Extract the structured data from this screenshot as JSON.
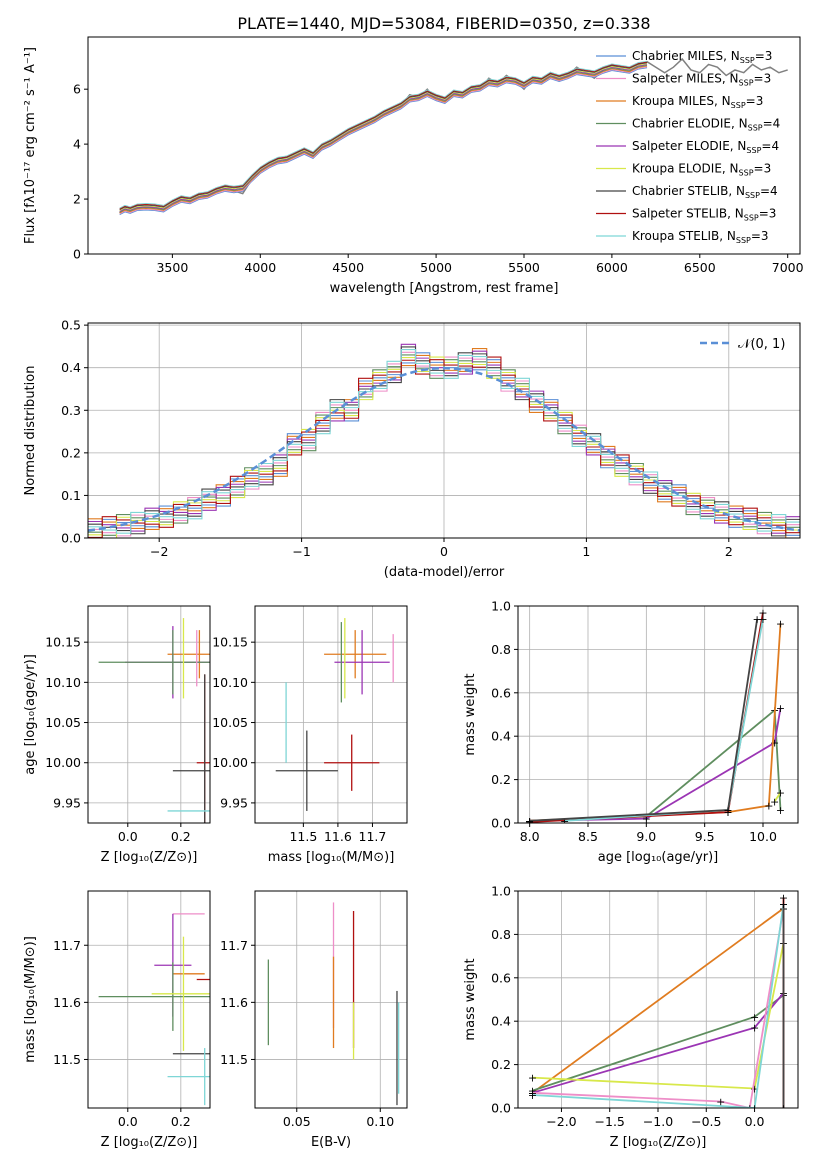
{
  "figure_title": "PLATE=1440, MJD=53084, FIBERID=0350, z=0.338",
  "models": [
    {
      "name": "Chabrier MILES, N",
      "ssp": "3",
      "color": "#5a8fd6"
    },
    {
      "name": "Salpeter MILES, N",
      "ssp": "3",
      "color": "#ee8ec8"
    },
    {
      "name": "Kroupa MILES, N",
      "ssp": "3",
      "color": "#e07c20"
    },
    {
      "name": "Chabrier ELODIE, N",
      "ssp": "4",
      "color": "#5f8e5f"
    },
    {
      "name": "Salpeter ELODIE, N",
      "ssp": "4",
      "color": "#9b35b4"
    },
    {
      "name": "Kroupa ELODIE, N",
      "ssp": "3",
      "color": "#d8e84a"
    },
    {
      "name": "Chabrier STELIB, N",
      "ssp": "4",
      "color": "#444444"
    },
    {
      "name": "Salpeter STELIB, N",
      "ssp": "3",
      "color": "#b01010"
    },
    {
      "name": "Kroupa STELIB, N",
      "ssp": "3",
      "color": "#7ed6d6"
    }
  ],
  "chart_data": [
    {
      "id": "spectrum",
      "type": "line",
      "title": "PLATE=1440, MJD=53084, FIBERID=0350, z=0.338",
      "xlabel": "wavelength [Angstrom, rest frame]",
      "ylabel": "Flux [fλ10⁻¹⁷ erg cm⁻² s⁻¹ A⁻¹]",
      "xlim": [
        3020,
        7070
      ],
      "ylim": [
        0,
        7.9
      ],
      "xticks": [
        3500,
        4000,
        4500,
        5000,
        5500,
        6000,
        6500,
        7000
      ],
      "yticks": [
        0,
        2,
        4,
        6
      ],
      "legend": "top-right",
      "data_color": "#808080",
      "data_x": [
        3200,
        3230,
        3260,
        3300,
        3350,
        3400,
        3450,
        3500,
        3550,
        3600,
        3650,
        3700,
        3750,
        3800,
        3850,
        3900,
        3950,
        4000,
        4050,
        4100,
        4150,
        4200,
        4250,
        4300,
        4350,
        4400,
        4450,
        4500,
        4550,
        4600,
        4650,
        4700,
        4750,
        4800,
        4850,
        4900,
        4950,
        5000,
        5050,
        5100,
        5150,
        5200,
        5250,
        5300,
        5350,
        5400,
        5450,
        5500,
        5550,
        5600,
        5650,
        5700,
        5750,
        5800,
        5850,
        5900,
        5950,
        6000,
        6050,
        6100,
        6150,
        6200,
        6250,
        6300,
        6350,
        6400,
        6450,
        6500,
        6550,
        6600,
        6650,
        6700,
        6750,
        6800,
        6850,
        6900,
        6950,
        7000
      ],
      "data_y": [
        1.5,
        1.7,
        1.6,
        1.8,
        1.7,
        1.75,
        1.6,
        1.9,
        2.1,
        1.9,
        2.2,
        2.1,
        2.3,
        2.5,
        2.3,
        2.2,
        2.7,
        3.1,
        3.3,
        3.5,
        3.4,
        3.7,
        3.8,
        3.5,
        3.9,
        4.0,
        4.3,
        4.5,
        4.6,
        4.8,
        4.9,
        5.2,
        5.3,
        5.4,
        5.8,
        5.7,
        6.0,
        5.6,
        5.5,
        5.9,
        5.7,
        6.1,
        6.0,
        6.4,
        6.2,
        6.5,
        6.3,
        6.0,
        6.4,
        6.2,
        6.6,
        6.3,
        6.5,
        6.8,
        6.6,
        6.4,
        6.7,
        6.9,
        6.7,
        6.6,
        6.9,
        7.0,
        6.8,
        6.6,
        6.8,
        7.1,
        6.7,
        6.6,
        6.9,
        6.8,
        6.5,
        6.7,
        6.6,
        6.9,
        6.7,
        6.8,
        6.6,
        6.7
      ],
      "model_x": [
        3200,
        3230,
        3260,
        3300,
        3350,
        3400,
        3450,
        3500,
        3550,
        3600,
        3650,
        3700,
        3750,
        3800,
        3850,
        3900,
        3950,
        4000,
        4050,
        4100,
        4150,
        4200,
        4250,
        4300,
        4350,
        4400,
        4450,
        4500,
        4550,
        4600,
        4650,
        4700,
        4750,
        4800,
        4850,
        4900,
        4950,
        5000,
        5050,
        5100,
        5150,
        5200,
        5250,
        5300,
        5350,
        5400,
        5450,
        5500,
        5550,
        5600,
        5650,
        5700,
        5750,
        5800,
        5850,
        5900,
        5950,
        6000,
        6050,
        6100,
        6150,
        6200
      ],
      "model_y": [
        1.55,
        1.65,
        1.6,
        1.7,
        1.72,
        1.7,
        1.65,
        1.85,
        2.0,
        1.95,
        2.1,
        2.15,
        2.3,
        2.4,
        2.35,
        2.4,
        2.75,
        3.05,
        3.25,
        3.4,
        3.45,
        3.6,
        3.75,
        3.6,
        3.9,
        4.05,
        4.25,
        4.45,
        4.6,
        4.75,
        4.9,
        5.1,
        5.25,
        5.4,
        5.65,
        5.7,
        5.85,
        5.7,
        5.6,
        5.85,
        5.8,
        6.0,
        6.05,
        6.25,
        6.2,
        6.35,
        6.3,
        6.15,
        6.35,
        6.3,
        6.5,
        6.4,
        6.5,
        6.65,
        6.6,
        6.55,
        6.7,
        6.8,
        6.75,
        6.7,
        6.85,
        6.9
      ]
    },
    {
      "id": "residuals",
      "type": "line",
      "xlabel": "(data-model)/error",
      "ylabel": "Normed distribution",
      "xlim": [
        -2.5,
        2.5
      ],
      "ylim": [
        0,
        0.505
      ],
      "xticks": [
        -2,
        -1,
        0,
        1,
        2
      ],
      "yticks": [
        0.0,
        0.1,
        0.2,
        0.3,
        0.4,
        0.5
      ],
      "legend_label": "𝒩(0, 1)",
      "legend": "top-right",
      "bin_edges": [
        -2.5,
        -2.4,
        -2.3,
        -2.2,
        -2.1,
        -2.0,
        -1.9,
        -1.8,
        -1.7,
        -1.6,
        -1.5,
        -1.4,
        -1.3,
        -1.2,
        -1.1,
        -1.0,
        -0.9,
        -0.8,
        -0.7,
        -0.6,
        -0.5,
        -0.4,
        -0.3,
        -0.2,
        -0.1,
        0.0,
        0.1,
        0.2,
        0.3,
        0.4,
        0.5,
        0.6,
        0.7,
        0.8,
        0.9,
        1.0,
        1.1,
        1.2,
        1.3,
        1.4,
        1.5,
        1.6,
        1.7,
        1.8,
        1.9,
        2.0,
        2.1,
        2.2,
        2.3,
        2.4,
        2.5
      ],
      "hist": [
        0.02,
        0.025,
        0.03,
        0.035,
        0.045,
        0.05,
        0.06,
        0.07,
        0.09,
        0.1,
        0.12,
        0.14,
        0.15,
        0.17,
        0.22,
        0.23,
        0.27,
        0.3,
        0.3,
        0.35,
        0.37,
        0.39,
        0.43,
        0.41,
        0.4,
        0.4,
        0.41,
        0.42,
        0.4,
        0.37,
        0.35,
        0.32,
        0.3,
        0.27,
        0.24,
        0.22,
        0.19,
        0.17,
        0.15,
        0.13,
        0.11,
        0.1,
        0.08,
        0.07,
        0.06,
        0.05,
        0.045,
        0.035,
        0.03,
        0.025
      ]
    },
    {
      "id": "age-vs-Z",
      "type": "scatter",
      "xlabel": "Z [log₁₀(Z/Z⊙)]",
      "ylabel": "age  [log₁₀(age/yr)]",
      "xlim": [
        -0.15,
        0.31
      ],
      "ylim": [
        9.925,
        10.195
      ],
      "xticks": [
        0.0,
        0.2
      ],
      "yticks": [
        9.95,
        10.0,
        10.05,
        10.1,
        10.15
      ],
      "points": [
        {
          "x": 0.27,
          "y": 10.135,
          "xerr": 0.12,
          "yerr": 0.03,
          "color": "#e07c20"
        },
        {
          "x": 0.17,
          "y": 10.125,
          "xerr": 0.18,
          "yerr": 0.045,
          "color": "#9b35b4"
        },
        {
          "x": 0.17,
          "y": 10.125,
          "xerr": 0.28,
          "yerr": 0.04,
          "color": "#5f8e5f"
        },
        {
          "x": 0.21,
          "y": 10.13,
          "xerr": 0.0,
          "yerr": 0.05,
          "color": "#d8e84a"
        },
        {
          "x": 0.26,
          "y": 10.13,
          "xerr": 0.0,
          "yerr": 0.035,
          "color": "#ee8ec8"
        },
        {
          "x": 0.29,
          "y": 10.0,
          "xerr": 0.03,
          "yerr": 0.11,
          "color": "#b01010"
        },
        {
          "x": 0.29,
          "y": 9.99,
          "xerr": 0.12,
          "yerr": 0.12,
          "color": "#444444"
        },
        {
          "x": 0.29,
          "y": 9.94,
          "xerr": 0.14,
          "yerr": 0.0,
          "color": "#7ed6d6"
        }
      ]
    },
    {
      "id": "age-vs-mass",
      "type": "scatter",
      "xlabel": "mass [log₁₀(M/M⊙)]",
      "ylabel": "",
      "xlim": [
        11.36,
        11.8
      ],
      "ylim": [
        9.925,
        10.195
      ],
      "xticks": [
        11.5,
        11.6,
        11.7
      ],
      "yticks": [
        9.95,
        10.0,
        10.05,
        10.1,
        10.15
      ],
      "points": [
        {
          "x": 11.65,
          "y": 10.135,
          "xerr": 0.09,
          "yerr": 0.03,
          "color": "#e07c20"
        },
        {
          "x": 11.67,
          "y": 10.125,
          "xerr": 0.08,
          "yerr": 0.04,
          "color": "#9b35b4"
        },
        {
          "x": 11.61,
          "y": 10.125,
          "xerr": 0.0,
          "yerr": 0.05,
          "color": "#5f8e5f"
        },
        {
          "x": 11.62,
          "y": 10.13,
          "xerr": 0.0,
          "yerr": 0.05,
          "color": "#d8e84a"
        },
        {
          "x": 11.76,
          "y": 10.13,
          "xerr": 0.0,
          "yerr": 0.03,
          "color": "#ee8ec8"
        },
        {
          "x": 11.64,
          "y": 10.0,
          "xerr": 0.08,
          "yerr": 0.035,
          "color": "#b01010"
        },
        {
          "x": 11.51,
          "y": 9.99,
          "xerr": 0.09,
          "yerr": 0.05,
          "color": "#444444"
        },
        {
          "x": 11.45,
          "y": 10.05,
          "xerr": 0.0,
          "yerr": 0.05,
          "color": "#7ed6d6"
        }
      ]
    },
    {
      "id": "weight-vs-age",
      "type": "line",
      "xlabel": "age  [log₁₀(age/yr)]",
      "ylabel": "mass weight",
      "xlim": [
        7.9,
        10.3
      ],
      "ylim": [
        0,
        1.0
      ],
      "xticks": [
        8.0,
        8.5,
        9.0,
        9.5,
        10.0
      ],
      "yticks": [
        0.0,
        0.2,
        0.4,
        0.6,
        0.8,
        1.0
      ],
      "series": [
        {
          "color": "#5f8e5f",
          "x": [
            8.0,
            9.0,
            10.1,
            10.15
          ],
          "y": [
            0.01,
            0.03,
            0.52,
            0.06
          ]
        },
        {
          "color": "#9b35b4",
          "x": [
            8.0,
            9.0,
            10.1,
            10.15
          ],
          "y": [
            0.01,
            0.02,
            0.37,
            0.53
          ]
        },
        {
          "color": "#e07c20",
          "x": [
            8.0,
            9.7,
            10.05,
            10.15
          ],
          "y": [
            0.01,
            0.05,
            0.08,
            0.92
          ]
        },
        {
          "color": "#b01010",
          "x": [
            8.0,
            9.7,
            10.0
          ],
          "y": [
            0.005,
            0.05,
            0.97
          ]
        },
        {
          "color": "#7ed6d6",
          "x": [
            8.3,
            9.7,
            10.0
          ],
          "y": [
            0.01,
            0.06,
            0.94
          ]
        },
        {
          "color": "#444444",
          "x": [
            8.0,
            9.7,
            9.95
          ],
          "y": [
            0.01,
            0.06,
            0.94
          ]
        },
        {
          "color": "#d8e84a",
          "x": [
            10.1,
            10.15
          ],
          "y": [
            0.1,
            0.14
          ]
        }
      ]
    },
    {
      "id": "mass-vs-Z",
      "type": "scatter",
      "xlabel": "Z [log₁₀(Z/Z⊙)]",
      "ylabel": "mass [log₁₀(M/M⊙)]",
      "xlim": [
        -0.15,
        0.31
      ],
      "ylim": [
        11.415,
        11.795
      ],
      "xticks": [
        0.0,
        0.2
      ],
      "yticks": [
        11.5,
        11.6,
        11.7
      ],
      "points": [
        {
          "x": 0.23,
          "y": 11.755,
          "xerr": 0.06,
          "yerr": 0.0,
          "color": "#ee8ec8"
        },
        {
          "x": 0.17,
          "y": 11.665,
          "xerr": 0.07,
          "yerr": 0.09,
          "color": "#9b35b4"
        },
        {
          "x": 0.23,
          "y": 11.65,
          "xerr": 0.06,
          "yerr": 0.0,
          "color": "#e07c20"
        },
        {
          "x": 0.17,
          "y": 11.61,
          "xerr": 0.28,
          "yerr": 0.06,
          "color": "#5f8e5f"
        },
        {
          "x": 0.21,
          "y": 11.615,
          "xerr": 0.12,
          "yerr": 0.1,
          "color": "#d8e84a"
        },
        {
          "x": 0.29,
          "y": 11.64,
          "xerr": 0.03,
          "yerr": 0.0,
          "color": "#b01010"
        },
        {
          "x": 0.29,
          "y": 11.51,
          "xerr": 0.12,
          "yerr": 0.0,
          "color": "#444444"
        },
        {
          "x": 0.29,
          "y": 11.47,
          "xerr": 0.14,
          "yerr": 0.05,
          "color": "#7ed6d6"
        }
      ]
    },
    {
      "id": "mass-vs-ebv",
      "type": "scatter",
      "xlabel": "E(B-V)",
      "ylabel": "",
      "xlim": [
        0.025,
        0.116
      ],
      "ylim": [
        11.415,
        11.795
      ],
      "xticks": [
        0.05,
        0.1
      ],
      "yticks": [
        11.5,
        11.6,
        11.7
      ],
      "points": [
        {
          "x": 0.033,
          "y": 11.6,
          "xerr": 0.0,
          "yerr": 0.075,
          "color": "#5f8e5f"
        },
        {
          "x": 0.072,
          "y": 11.665,
          "xerr": 0.0,
          "yerr": 0.11,
          "color": "#ee8ec8"
        },
        {
          "x": 0.072,
          "y": 11.6,
          "xerr": 0.0,
          "yerr": 0.08,
          "color": "#e07c20"
        },
        {
          "x": 0.084,
          "y": 11.64,
          "xerr": 0.0,
          "yerr": 0.12,
          "color": "#b01010"
        },
        {
          "x": 0.084,
          "y": 11.55,
          "xerr": 0.0,
          "yerr": 0.05,
          "color": "#d8e84a"
        },
        {
          "x": 0.11,
          "y": 11.52,
          "xerr": 0.0,
          "yerr": 0.1,
          "color": "#444444"
        },
        {
          "x": 0.111,
          "y": 11.52,
          "xerr": 0.0,
          "yerr": 0.08,
          "color": "#7ed6d6"
        }
      ]
    },
    {
      "id": "weight-vs-Z",
      "type": "line",
      "xlabel": "Z [log₁₀(Z/Z⊙)]",
      "ylabel": "mass weight",
      "xlim": [
        -2.45,
        0.45
      ],
      "ylim": [
        0,
        1.0
      ],
      "xticks": [
        -2.0,
        -1.5,
        -1.0,
        -0.5,
        0.0
      ],
      "yticks": [
        0.0,
        0.2,
        0.4,
        0.6,
        0.8,
        1.0
      ],
      "series": [
        {
          "color": "#e07c20",
          "x": [
            -2.3,
            0.3
          ],
          "y": [
            0.07,
            0.92
          ]
        },
        {
          "color": "#5f8e5f",
          "x": [
            -2.3,
            0.0,
            0.3
          ],
          "y": [
            0.08,
            0.42,
            0.52
          ]
        },
        {
          "color": "#9b35b4",
          "x": [
            -2.3,
            0.0,
            0.3
          ],
          "y": [
            0.07,
            0.37,
            0.53
          ]
        },
        {
          "color": "#d8e84a",
          "x": [
            -2.3,
            0.0,
            0.3
          ],
          "y": [
            0.14,
            0.09,
            0.76
          ]
        },
        {
          "color": "#ee8ec8",
          "x": [
            -2.3,
            -0.35,
            -0.05,
            0.3
          ],
          "y": [
            0.07,
            0.03,
            0.0,
            0.92
          ]
        },
        {
          "color": "#7ed6d6",
          "x": [
            -2.3,
            0.0,
            0.3
          ],
          "y": [
            0.06,
            0.0,
            0.94
          ]
        },
        {
          "color": "#b01010",
          "x": [
            0.3,
            0.3
          ],
          "y": [
            0.0,
            0.97
          ]
        },
        {
          "color": "#444444",
          "x": [
            0.3,
            0.3
          ],
          "y": [
            0.0,
            0.94
          ]
        }
      ]
    }
  ]
}
